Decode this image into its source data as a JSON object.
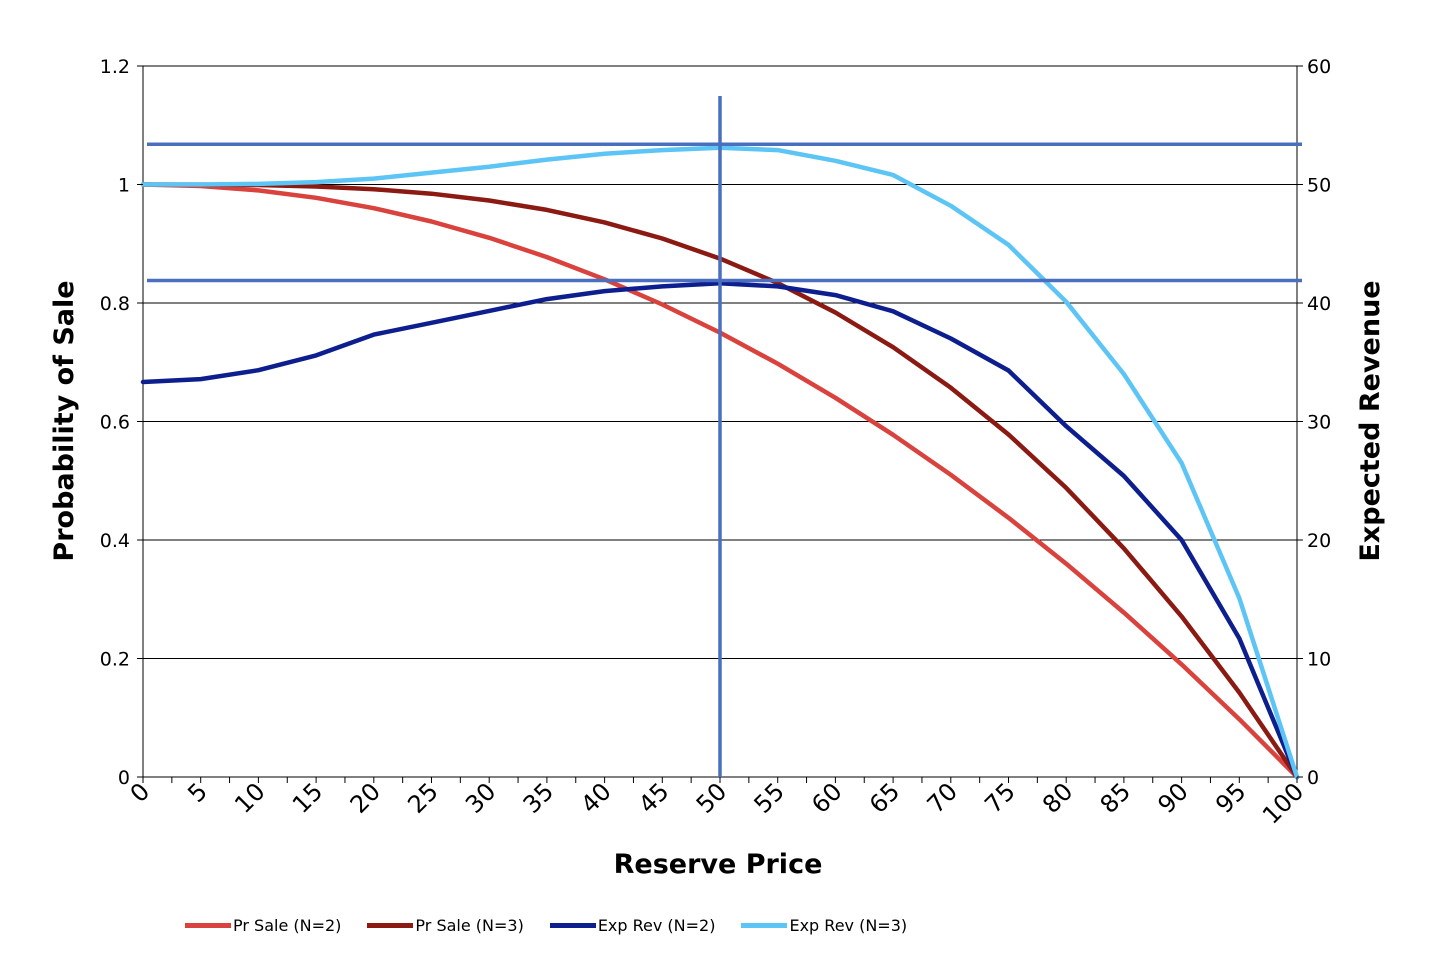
{
  "chart_data": {
    "type": "line",
    "xlabel": "Reserve Price",
    "ylabel_left": "Probability of Sale",
    "ylabel_right": "Expected Revenue",
    "x": [
      0,
      5,
      10,
      15,
      20,
      25,
      30,
      35,
      40,
      45,
      50,
      55,
      60,
      65,
      70,
      75,
      80,
      85,
      90,
      95,
      100
    ],
    "x_tick_labels": [
      "0",
      "5",
      "10",
      "15",
      "20",
      "25",
      "30",
      "35",
      "40",
      "45",
      "50",
      "55",
      "60",
      "65",
      "70",
      "75",
      "80",
      "85",
      "90",
      "95",
      "100"
    ],
    "xlim": [
      0,
      100
    ],
    "ylim_left": [
      0,
      1.2
    ],
    "ylim_right": [
      0,
      60
    ],
    "left_tick_labels": [
      "0",
      "0.2",
      "0.4",
      "0.6",
      "0.8",
      "1",
      "1.2"
    ],
    "left_tick_values": [
      0,
      0.2,
      0.4,
      0.6,
      0.8,
      1,
      1.2
    ],
    "right_tick_labels": [
      "0",
      "10",
      "20",
      "30",
      "40",
      "50",
      "60"
    ],
    "right_tick_values": [
      0,
      10,
      20,
      30,
      40,
      50,
      60
    ],
    "grid": "horizontal",
    "legend_position": "bottom",
    "series": [
      {
        "name": "Pr Sale (N=2)",
        "axis": "left",
        "color": "#d9423d",
        "values": [
          1.0,
          0.9975,
          0.99,
          0.9775,
          0.96,
          0.9375,
          0.91,
          0.8775,
          0.84,
          0.7975,
          0.75,
          0.6975,
          0.64,
          0.5775,
          0.51,
          0.4375,
          0.36,
          0.2775,
          0.19,
          0.0975,
          0.0
        ]
      },
      {
        "name": "Pr Sale (N=3)",
        "axis": "left",
        "color": "#8b1a13",
        "values": [
          1.0,
          0.9999,
          0.9991,
          0.9966,
          0.992,
          0.9844,
          0.973,
          0.9571,
          0.936,
          0.9089,
          0.875,
          0.8336,
          0.784,
          0.7254,
          0.657,
          0.5781,
          0.488,
          0.3859,
          0.271,
          0.1426,
          0.0
        ]
      },
      {
        "name": "Exp Rev (N=2)",
        "axis": "right",
        "color": "#0d1f8f",
        "values": [
          33.33,
          33.58,
          34.33,
          35.58,
          37.33,
          38.33,
          39.33,
          40.33,
          41.0,
          41.4,
          41.67,
          41.4,
          40.67,
          39.3,
          37.0,
          34.3,
          29.6,
          25.4,
          20.0,
          11.7,
          0.0
        ]
      },
      {
        "name": "Exp Rev (N=3)",
        "axis": "right",
        "color": "#5cc5f5",
        "values": [
          50.0,
          50.0,
          50.05,
          50.2,
          50.5,
          51.0,
          51.5,
          52.1,
          52.6,
          52.9,
          53.1,
          52.9,
          52.0,
          50.8,
          48.2,
          44.9,
          40.1,
          34.0,
          26.5,
          15.1,
          0.0
        ]
      }
    ],
    "reference_lines": [
      {
        "orientation": "horizontal",
        "axis": "right",
        "value": 53.4,
        "color": "#4a6fbf"
      },
      {
        "orientation": "horizontal",
        "axis": "right",
        "value": 41.9,
        "color": "#4a6fbf"
      },
      {
        "orientation": "vertical",
        "x": 50,
        "color": "#4a6fbf"
      }
    ]
  }
}
